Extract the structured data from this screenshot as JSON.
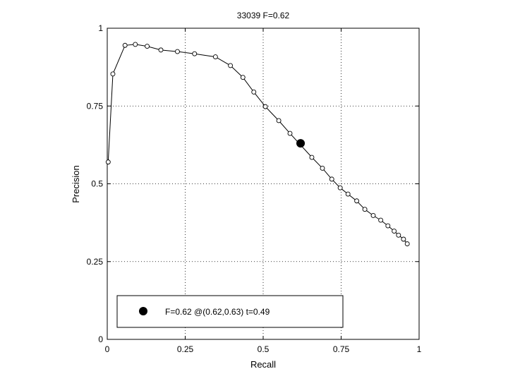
{
  "chart_data": {
    "type": "line",
    "title": "33039 F=0.62",
    "xlabel": "Recall",
    "ylabel": "Precision",
    "xlim": [
      0,
      1
    ],
    "ylim": [
      0,
      1
    ],
    "xticks": [
      0,
      0.25,
      0.5,
      0.75,
      1
    ],
    "xtick_labels": [
      "0",
      "0.25",
      "0.5",
      "0.75",
      "1"
    ],
    "yticks": [
      0,
      0.25,
      0.5,
      0.75,
      1
    ],
    "ytick_labels": [
      "0",
      "0.25",
      "0.5",
      "0.75",
      "1"
    ],
    "grid": true,
    "legend_position": "bottom-left",
    "series": [
      {
        "marker": "open-circle",
        "color": "#000000",
        "x": [
          0.003,
          0.018,
          0.057,
          0.09,
          0.128,
          0.172,
          0.225,
          0.28,
          0.347,
          0.395,
          0.435,
          0.47,
          0.507,
          0.55,
          0.586,
          0.656,
          0.69,
          0.72,
          0.747,
          0.772,
          0.8,
          0.826,
          0.853,
          0.877,
          0.9,
          0.92,
          0.934,
          0.95,
          0.962
        ],
        "y": [
          0.57,
          0.853,
          0.945,
          0.948,
          0.942,
          0.93,
          0.925,
          0.918,
          0.908,
          0.88,
          0.842,
          0.795,
          0.748,
          0.703,
          0.662,
          0.585,
          0.55,
          0.515,
          0.487,
          0.467,
          0.445,
          0.418,
          0.398,
          0.383,
          0.365,
          0.348,
          0.335,
          0.322,
          0.307
        ]
      }
    ],
    "highlight": {
      "x": 0.62,
      "y": 0.63,
      "marker": "filled-circle",
      "color": "#000000",
      "legend": "F=0.62 @(0.62,0.63) t=0.49"
    }
  }
}
